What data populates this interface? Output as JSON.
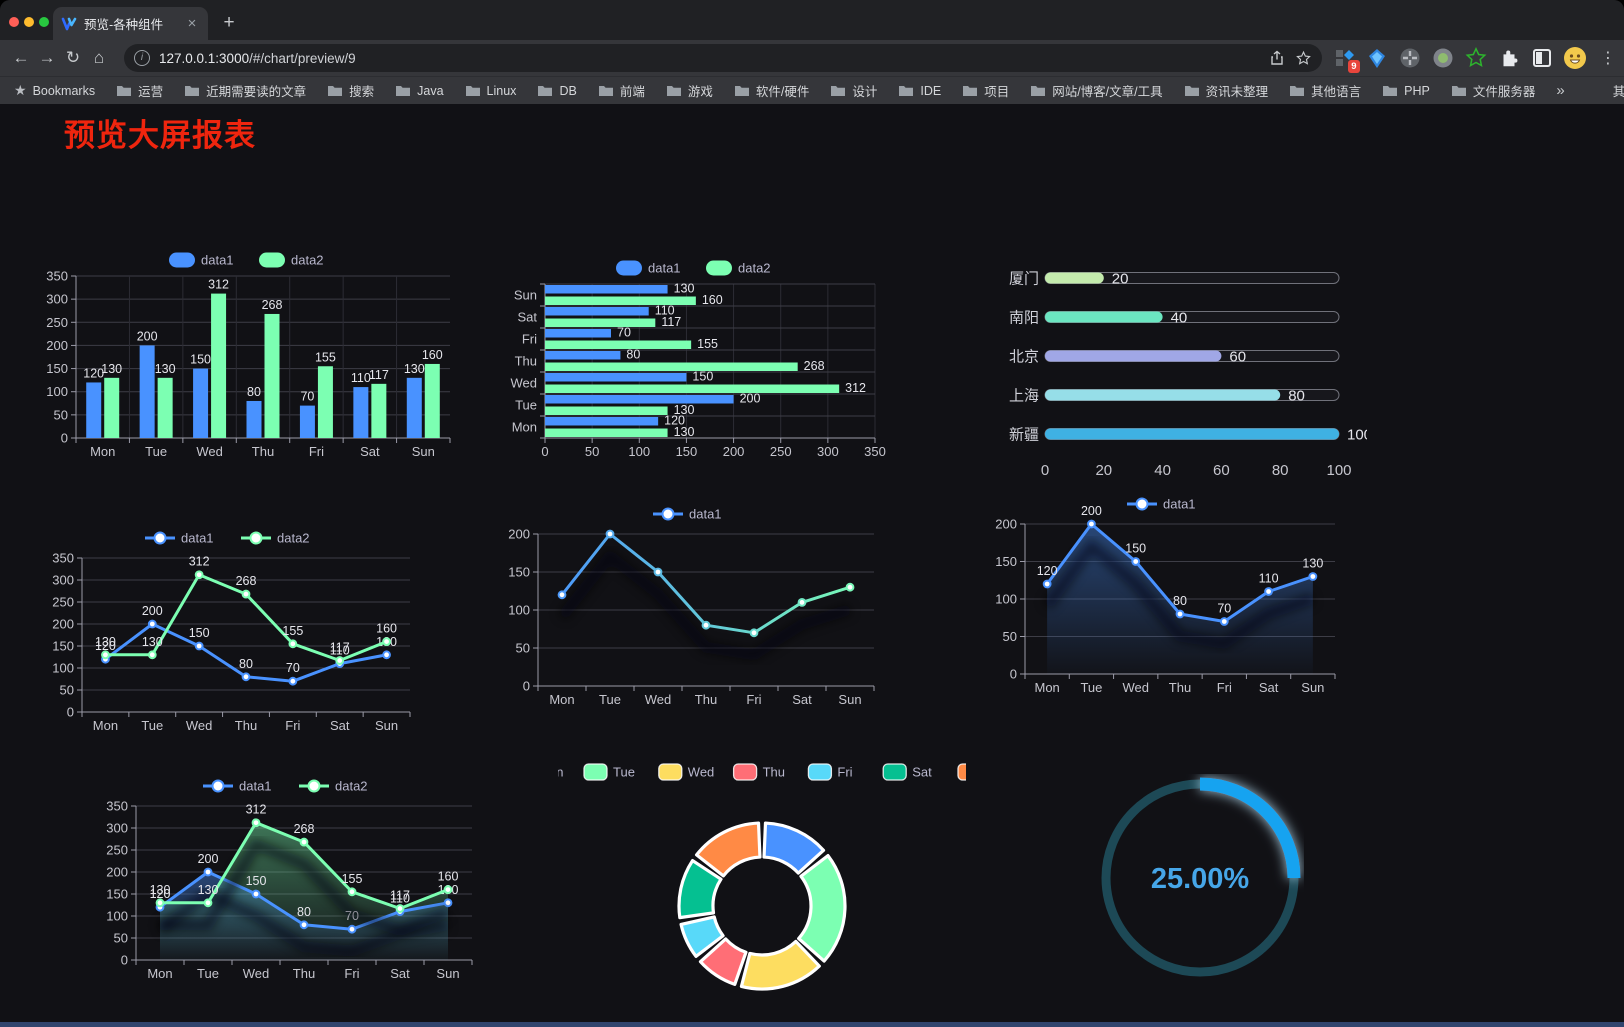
{
  "browser": {
    "tab_title": "预览-各种组件",
    "close_glyph": "×",
    "newtab_glyph": "+",
    "nav": {
      "back": "←",
      "forward": "→",
      "reload": "↻",
      "home": "⌂"
    },
    "url": {
      "info_glyph": "i",
      "host": "127.0.0.1:3000",
      "path": "/#/chart/preview/9"
    },
    "extension_badge": "9",
    "menu_glyph": "⋮",
    "bookmarks_star": "★",
    "bookmarks_label": "Bookmarks",
    "bookmarks": [
      "运营",
      "近期需要读的文章",
      "搜索",
      "Java",
      "Linux",
      "DB",
      "前端",
      "游戏",
      "软件/硬件",
      "设计",
      "IDE",
      "项目",
      "网站/博客/文章/工具",
      "资讯未整理",
      "其他语言",
      "PHP",
      "文件服务器"
    ],
    "overflow_glyph": "»",
    "other_bookmarks": "其他书签"
  },
  "page": {
    "title": "预览大屏报表",
    "title_color": "#ef250e",
    "background": "#111115"
  },
  "palette": {
    "blue": "#4992ff",
    "green": "#7cffb2",
    "yellow": "#fddd60",
    "red": "#ff6e76",
    "lightblue": "#58d9f9",
    "teal": "#05c091",
    "orange": "#ff8a45",
    "axis_label": "#c6c6ce",
    "grid": "#3d3d46",
    "axis_line": "#9b9ba8",
    "value_label": "#e6e6ec",
    "legend_text": "#b9b8ce"
  },
  "chart_data": [
    {
      "id": "c1",
      "type": "bar",
      "title": "",
      "legend_position": "top",
      "categories": [
        "Mon",
        "Tue",
        "Wed",
        "Thu",
        "Fri",
        "Sat",
        "Sun"
      ],
      "series": [
        {
          "name": "data1",
          "color": "#4992ff",
          "values": [
            120,
            200,
            150,
            80,
            70,
            110,
            130
          ]
        },
        {
          "name": "data2",
          "color": "#7cffb2",
          "values": [
            130,
            130,
            312,
            268,
            155,
            117,
            160
          ]
        }
      ],
      "ylim": [
        0,
        350
      ],
      "yticks": [
        0,
        50,
        100,
        150,
        200,
        250,
        300,
        350
      ],
      "labels": true,
      "grid": true
    },
    {
      "id": "c2",
      "type": "bar",
      "orientation": "horizontal",
      "legend_position": "top",
      "categories": [
        "Mon",
        "Tue",
        "Wed",
        "Thu",
        "Fri",
        "Sat",
        "Sun"
      ],
      "series": [
        {
          "name": "data1",
          "color": "#4992ff",
          "values": [
            120,
            200,
            150,
            80,
            70,
            110,
            130
          ]
        },
        {
          "name": "data2",
          "color": "#7cffb2",
          "values": [
            130,
            130,
            312,
            268,
            155,
            117,
            160
          ]
        }
      ],
      "xlim": [
        0,
        350
      ],
      "xticks": [
        0,
        50,
        100,
        150,
        200,
        250,
        300,
        350
      ],
      "labels": true,
      "grid": true
    },
    {
      "id": "c3",
      "type": "progress",
      "categories": [
        "厦门",
        "南阳",
        "北京",
        "上海",
        "新疆"
      ],
      "values": [
        20,
        40,
        60,
        80,
        100
      ],
      "colors": [
        "#c4ebad",
        "#6be6c1",
        "#a0a7e6",
        "#96dee8",
        "#3fb1e3"
      ],
      "xlim": [
        0,
        100
      ],
      "xticks": [
        0,
        20,
        40,
        60,
        80,
        100
      ]
    },
    {
      "id": "c4",
      "type": "line",
      "legend_position": "top",
      "categories": [
        "Mon",
        "Tue",
        "Wed",
        "Thu",
        "Fri",
        "Sat",
        "Sun"
      ],
      "series": [
        {
          "name": "data1",
          "color": "#4992ff",
          "values": [
            120,
            200,
            150,
            80,
            70,
            110,
            130
          ]
        },
        {
          "name": "data2",
          "color": "#7cffb2",
          "values": [
            130,
            130,
            312,
            268,
            155,
            117,
            160
          ]
        }
      ],
      "ylim": [
        0,
        350
      ],
      "yticks": [
        0,
        50,
        100,
        150,
        200,
        250,
        300,
        350
      ],
      "labels": true
    },
    {
      "id": "c5",
      "type": "line",
      "legend_position": "top",
      "categories": [
        "Mon",
        "Tue",
        "Wed",
        "Thu",
        "Fri",
        "Sat",
        "Sun"
      ],
      "series": [
        {
          "name": "data1",
          "color": "#4992ff",
          "color_end": "#7cffb2",
          "gradient": true,
          "values": [
            120,
            200,
            150,
            80,
            70,
            110,
            130
          ]
        }
      ],
      "ylim": [
        0,
        200
      ],
      "yticks": [
        0,
        50,
        100,
        150,
        200
      ],
      "labels": false,
      "shadow": true
    },
    {
      "id": "c6",
      "type": "line",
      "legend_position": "top",
      "categories": [
        "Mon",
        "Tue",
        "Wed",
        "Thu",
        "Fri",
        "Sat",
        "Sun"
      ],
      "series": [
        {
          "name": "data1",
          "color": "#4992ff",
          "area": true,
          "values": [
            120,
            200,
            150,
            80,
            70,
            110,
            130
          ]
        }
      ],
      "ylim": [
        0,
        200
      ],
      "yticks": [
        0,
        50,
        100,
        150,
        200
      ],
      "labels": true,
      "shadow": true
    },
    {
      "id": "c7",
      "type": "line",
      "legend_position": "top",
      "categories": [
        "Mon",
        "Tue",
        "Wed",
        "Thu",
        "Fri",
        "Sat",
        "Sun"
      ],
      "series": [
        {
          "name": "data1",
          "color": "#4992ff",
          "area": true,
          "values": [
            120,
            200,
            150,
            80,
            70,
            110,
            130
          ]
        },
        {
          "name": "data2",
          "color": "#7cffb2",
          "area": true,
          "values": [
            130,
            130,
            312,
            268,
            155,
            117,
            160
          ]
        }
      ],
      "ylim": [
        0,
        350
      ],
      "yticks": [
        0,
        50,
        100,
        150,
        200,
        250,
        300,
        350
      ],
      "labels": true,
      "shadow": true
    },
    {
      "id": "c8",
      "type": "pie",
      "legend_position": "top",
      "categories": [
        "Mon",
        "Tue",
        "Wed",
        "Thu",
        "Fri",
        "Sat",
        "Sun"
      ],
      "values": [
        120,
        200,
        150,
        80,
        70,
        110,
        130
      ],
      "colors": [
        "#4992ff",
        "#7cffb2",
        "#fddd60",
        "#ff6e76",
        "#58d9f9",
        "#05c091",
        "#ff8a45"
      ]
    },
    {
      "id": "c9",
      "type": "gauge",
      "value": 25,
      "label": "25.00%",
      "color": "#16a3f0",
      "track": "#1d4956",
      "text_color": "#46a6e8"
    }
  ]
}
